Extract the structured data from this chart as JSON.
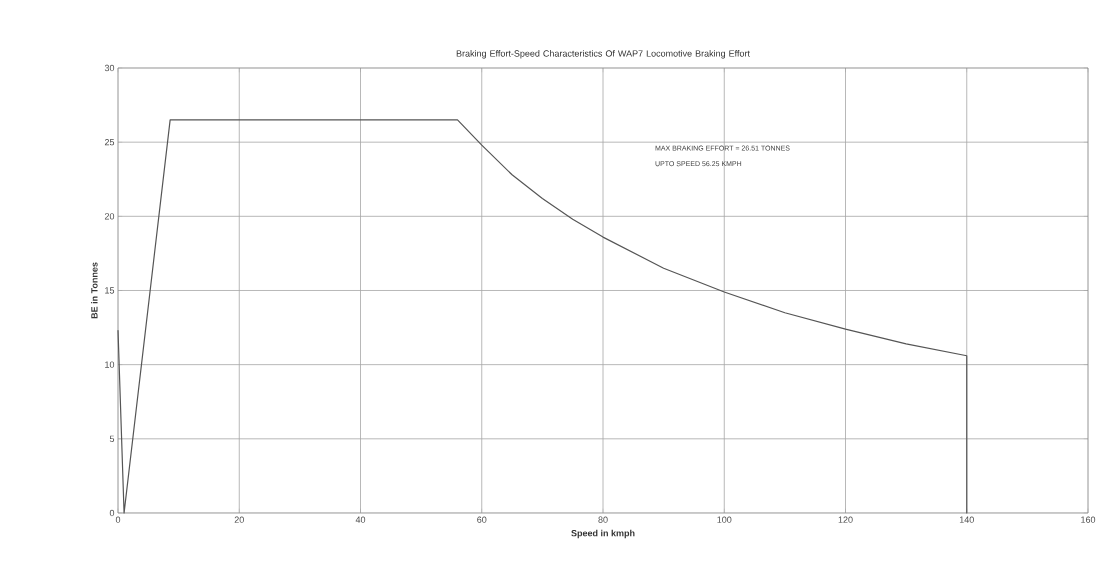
{
  "chart_data": {
    "type": "line",
    "title": "Braking Effort-Speed Characteristics Of WAP7 Locomotive Braking Effort",
    "xlabel": "Speed in kmph",
    "ylabel": "BE in Tonnes",
    "annotations": [
      "MAX BRAKING EFFORT = 26.51 TONNES",
      "UPTO SPEED 56.25 KMPH"
    ],
    "series": [
      {
        "color": "#555555",
        "x": [
          0,
          1,
          8.6,
          56,
          60,
          65,
          70,
          75,
          80,
          90,
          100,
          110,
          120,
          130,
          140,
          140
        ],
        "values": [
          12.3,
          0,
          26.5,
          26.5,
          24.8,
          22.8,
          21.2,
          19.8,
          18.6,
          16.5,
          14.9,
          13.5,
          12.4,
          11.4,
          10.6,
          0
        ]
      }
    ],
    "xlim": [
      0,
      160
    ],
    "xticks": [
      0,
      20,
      40,
      60,
      80,
      100,
      120,
      140,
      160
    ],
    "ylim": [
      0,
      30
    ],
    "yticks": [
      0,
      5,
      10,
      15,
      20,
      25,
      30
    ],
    "grid": true,
    "marker": "none",
    "line_style": "solid"
  }
}
